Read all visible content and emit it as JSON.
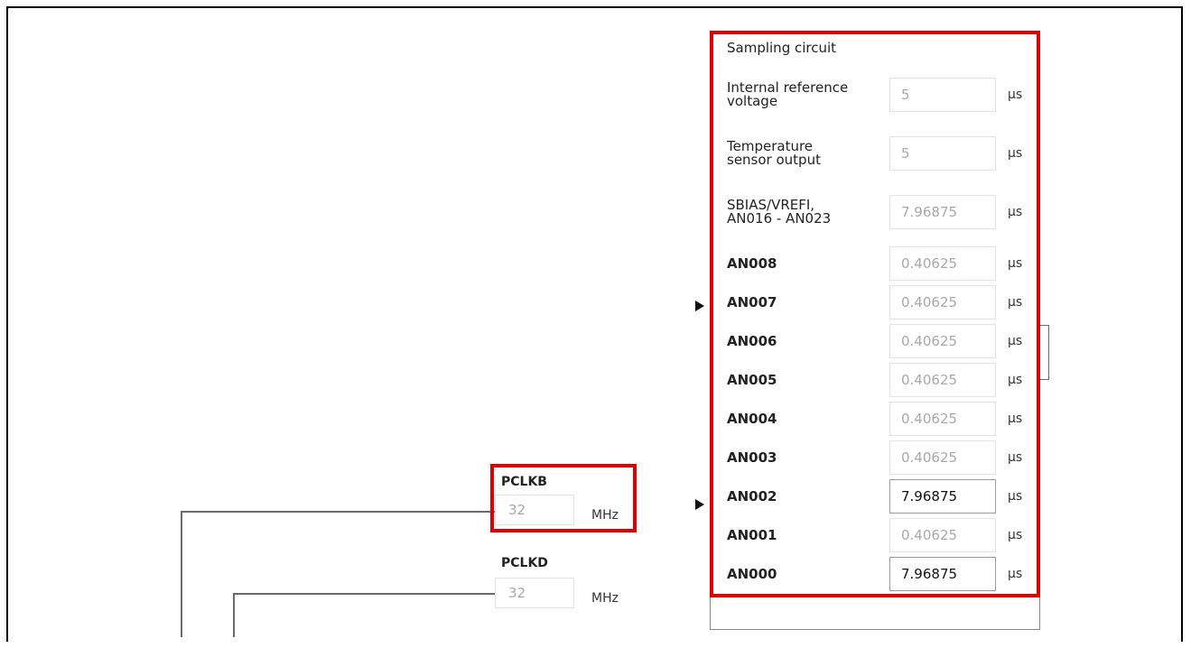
{
  "sampling": {
    "title": "Sampling circuit",
    "unit": "µs",
    "rows": [
      {
        "label": "Internal reference\nvoltage",
        "value": "5",
        "active": false,
        "code": false
      },
      {
        "label": "Temperature\nsensor output",
        "value": "5",
        "active": false,
        "code": false
      },
      {
        "label": "SBIAS/VREFI,\nAN016 - AN023",
        "value": "7.96875",
        "active": false,
        "code": false
      },
      {
        "label": "AN008",
        "value": "0.40625",
        "active": false,
        "code": true
      },
      {
        "label": "AN007",
        "value": "0.40625",
        "active": false,
        "code": true
      },
      {
        "label": "AN006",
        "value": "0.40625",
        "active": false,
        "code": true
      },
      {
        "label": "AN005",
        "value": "0.40625",
        "active": false,
        "code": true
      },
      {
        "label": "AN004",
        "value": "0.40625",
        "active": false,
        "code": true
      },
      {
        "label": "AN003",
        "value": "0.40625",
        "active": false,
        "code": true
      },
      {
        "label": "AN002",
        "value": "7.96875",
        "active": true,
        "code": true
      },
      {
        "label": "AN001",
        "value": "0.40625",
        "active": false,
        "code": true
      },
      {
        "label": "AN000",
        "value": "7.96875",
        "active": true,
        "code": true
      }
    ]
  },
  "clocks": {
    "pclkb": {
      "label": "PCLKB",
      "value": "32",
      "unit": "MHz"
    },
    "pclkd": {
      "label": "PCLKD",
      "value": "32",
      "unit": "MHz"
    }
  },
  "colors": {
    "highlight": "#e10000"
  }
}
